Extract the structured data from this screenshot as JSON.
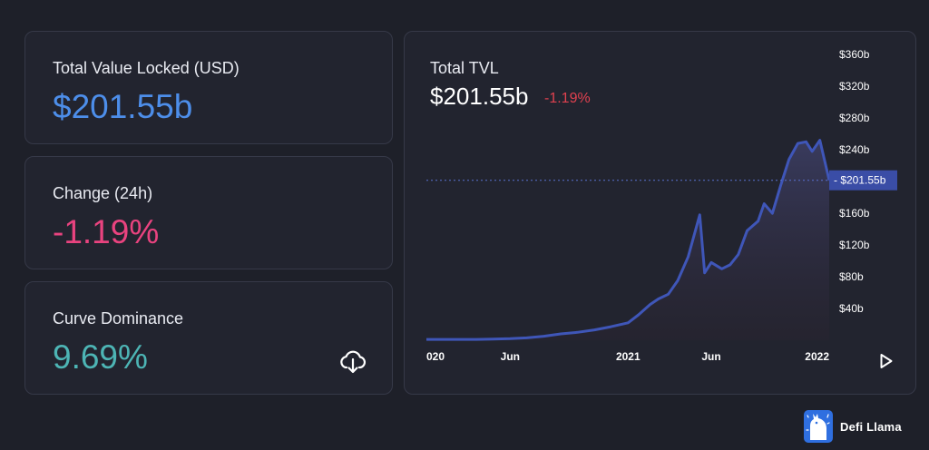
{
  "stats": [
    {
      "label": "Total Value Locked (USD)",
      "value": "$201.55b",
      "color": "#4d8eea"
    },
    {
      "label": "Change (24h)",
      "value": "-1.19%",
      "color": "#e9437f"
    },
    {
      "label": "Curve Dominance",
      "value": "9.69%",
      "color": "#4db5b5"
    }
  ],
  "download_icon": "cloud-download-icon",
  "chart": {
    "title": "Total TVL",
    "value": "$201.55b",
    "change": "-1.19%",
    "change_color": "#e0414f",
    "play_icon": "play-icon"
  },
  "brand": {
    "name": "Defi Llama",
    "logo_icon": "llama-logo-icon"
  },
  "chart_data": {
    "type": "area",
    "series": [
      {
        "x": [
          "2020-01-01",
          "2020-02-01",
          "2020-03-01",
          "2020-04-01",
          "2020-05-01",
          "2020-06-01",
          "2020-07-01",
          "2020-08-01",
          "2020-09-01",
          "2020-10-01",
          "2020-11-01",
          "2020-12-01",
          "2021-01-01",
          "2021-01-20",
          "2021-02-10",
          "2021-02-25",
          "2021-03-15",
          "2021-04-01",
          "2021-04-20",
          "2021-05-11",
          "2021-05-20",
          "2021-06-01",
          "2021-06-20",
          "2021-07-05",
          "2021-07-20",
          "2021-08-05",
          "2021-08-25",
          "2021-09-05",
          "2021-09-20",
          "2021-10-05",
          "2021-10-20",
          "2021-11-05",
          "2021-11-20",
          "2021-12-01",
          "2021-12-15",
          "2022-01-01"
        ],
        "values": [
          1,
          1,
          1,
          1,
          1.5,
          2,
          3,
          5,
          8,
          10,
          13,
          17,
          22,
          32,
          45,
          52,
          58,
          75,
          105,
          158,
          85,
          98,
          90,
          95,
          108,
          138,
          150,
          172,
          160,
          195,
          228,
          248,
          250,
          238,
          252,
          201.55
        ]
      }
    ],
    "xticks": [
      {
        "value": "2020-01-01",
        "label": "020"
      },
      {
        "value": "2020-06-01",
        "label": "Jun"
      },
      {
        "value": "2021-01-01",
        "label": "2021"
      },
      {
        "value": "2021-06-01",
        "label": "Jun"
      },
      {
        "value": "2022-01-01",
        "label": "2022"
      }
    ],
    "yticks": [
      {
        "value": 40,
        "label": "$40b"
      },
      {
        "value": 80,
        "label": "$80b"
      },
      {
        "value": 120,
        "label": "$120b"
      },
      {
        "value": 160,
        "label": "$160b"
      },
      {
        "value": 200,
        "label": "$200b"
      },
      {
        "value": 240,
        "label": "$240b"
      },
      {
        "value": 280,
        "label": "$280b"
      },
      {
        "value": 320,
        "label": "$320b"
      },
      {
        "value": 360,
        "label": "$360b"
      }
    ],
    "ylim": [
      0,
      375
    ],
    "current_value": 201.55,
    "current_label": "$201.55b",
    "line_color": "#3f56b8",
    "label_bg": "#3a4da6",
    "grid": false
  }
}
